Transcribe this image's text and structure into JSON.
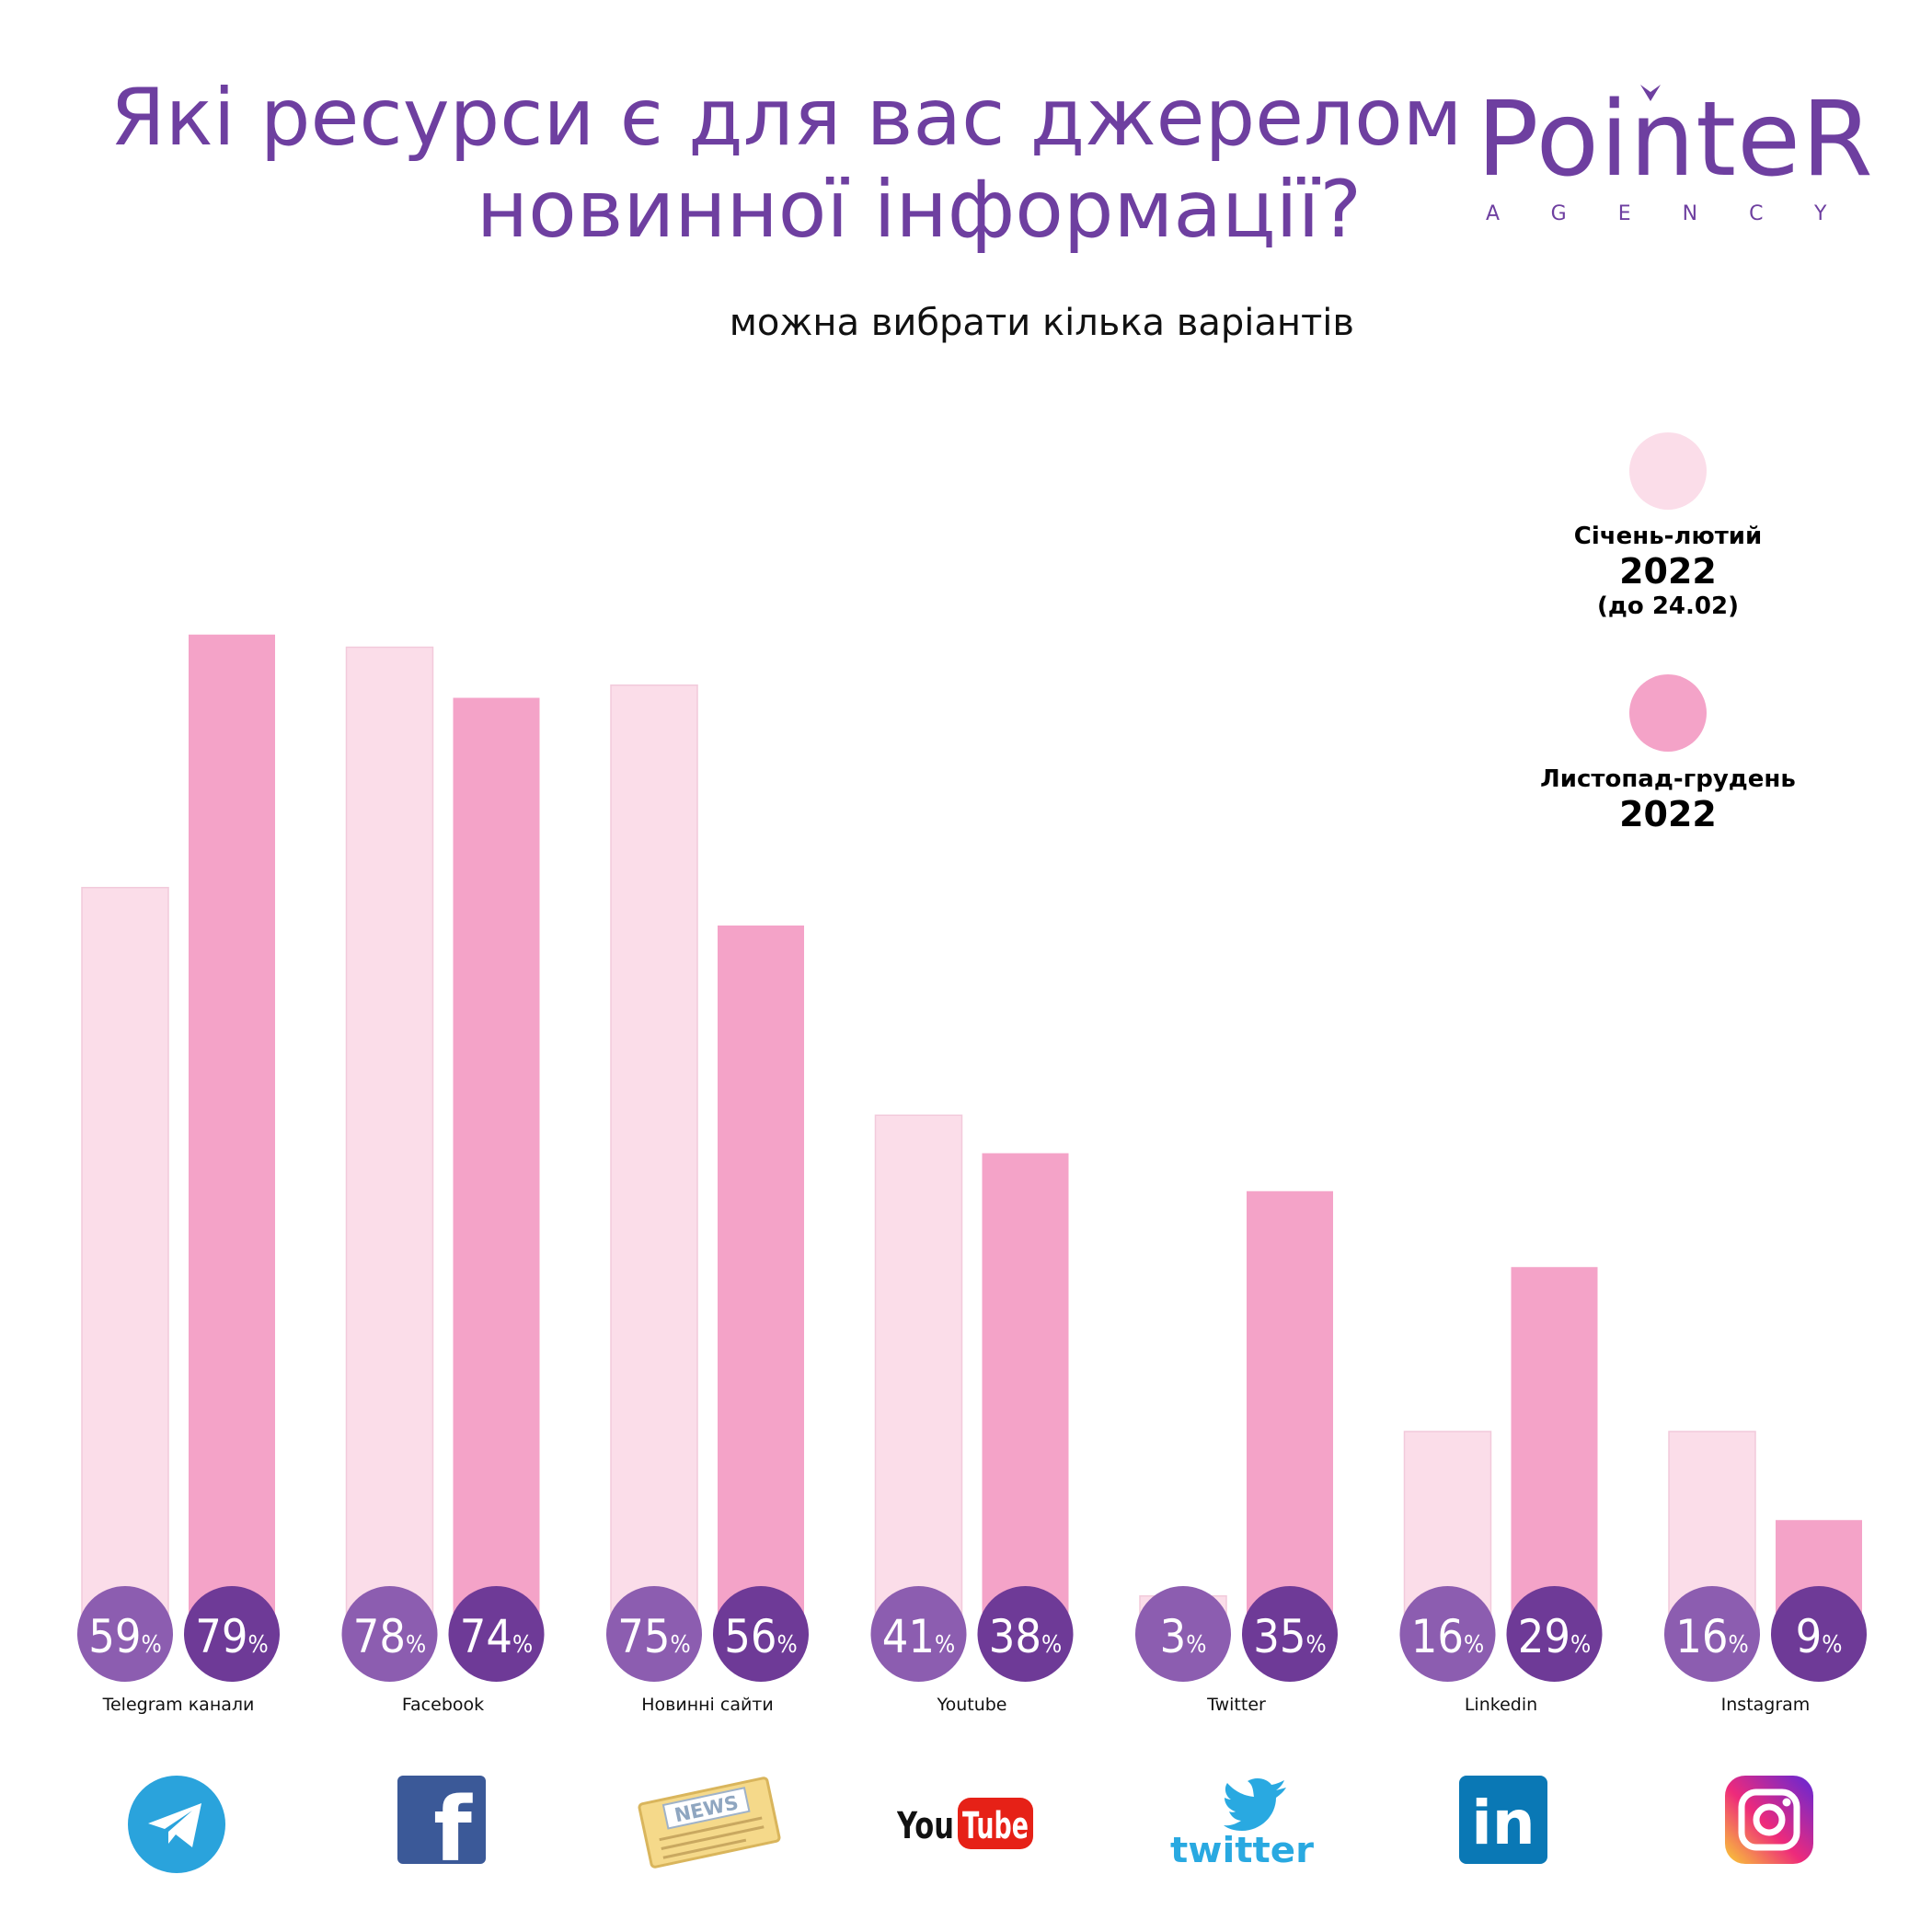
{
  "title_lines": [
    "Які ресурси є для вас джерелом",
    "новинної інформації?"
  ],
  "subtitle": "можна вибрати кілька варіантів",
  "logo": {
    "word": "PointeR",
    "sub": "AGENCY"
  },
  "legend": {
    "series1": {
      "line1": "Січень-лютий",
      "line2": "2022",
      "line3": "(до 24.02)"
    },
    "series2": {
      "line1": "Листопад-грудень",
      "line2": "2022"
    }
  },
  "colors": {
    "series1_bar": "#fbdde9",
    "series2_bar": "#f4a3c8",
    "series1_label": "#8c5db0",
    "series2_label": "#6e3a97",
    "title": "#6e3fa0"
  },
  "chart_data": {
    "type": "bar",
    "categories": [
      "Telegram канали",
      "Facebook",
      "Новинні сайти",
      "Youtube",
      "Twitter",
      "Linkedin",
      "Instagram"
    ],
    "series": [
      {
        "name": "Січень-лютий 2022 (до 24.02)",
        "values": [
          59,
          78,
          75,
          41,
          3,
          16,
          16
        ]
      },
      {
        "name": "Листопад-грудень 2022",
        "values": [
          79,
          74,
          56,
          38,
          35,
          29,
          9
        ]
      }
    ],
    "value_suffix": "%",
    "ylim": [
      0,
      100
    ],
    "grid": false,
    "legend_position": "right"
  },
  "icons": [
    "telegram-icon",
    "facebook-icon",
    "news-icon",
    "youtube-icon",
    "twitter-icon",
    "linkedin-icon",
    "instagram-icon"
  ],
  "icon_text": {
    "facebook": "f",
    "news": "NEWS",
    "youtube_you": "You",
    "youtube_tube": "Tube",
    "twitter": "twitter",
    "linkedin": "in"
  }
}
